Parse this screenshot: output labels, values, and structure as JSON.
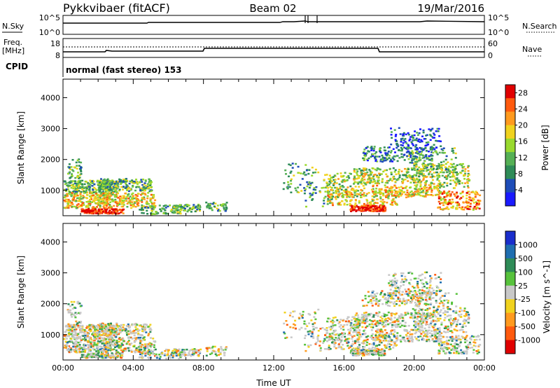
{
  "header": {
    "station": "Pykkvibaer (fitACF)",
    "beam": "Beam 02",
    "date": "19/Mar/2016"
  },
  "panels": {
    "nsky_label": "N.Sky",
    "nsky_top": "10^5",
    "nsky_bottom": "10^0",
    "nsearch_label": "N.Search",
    "nsearch_top": "10^5",
    "nsearch_bottom": "10^0",
    "freq_label": "Freq.",
    "freq_unit": "[MHz]",
    "freq_top": "18",
    "freq_bottom": "8",
    "nave_label": "Nave",
    "nave_top": "60",
    "nave_bottom": "0",
    "cpid_label": "CPID",
    "cpid_text": "normal (fast stereo) 153"
  },
  "colors": {
    "power": [
      "#1a1aff",
      "#1e4db8",
      "#2e8b57",
      "#55b055",
      "#99d92e",
      "#f0d21e",
      "#ff9a1e",
      "#ff5a0e",
      "#e00000"
    ],
    "velocity": [
      "#1a2ecc",
      "#1f6eb0",
      "#2e8b57",
      "#57c23c",
      "#c8c8c8",
      "#f0d21e",
      "#ff9a1e",
      "#ff5a0e",
      "#e00000"
    ]
  },
  "chart_data": [
    {
      "type": "heatmap",
      "title": "Power",
      "ylabel": "Slant Range [km]",
      "xlabel": "",
      "ylim": [
        180,
        4600
      ],
      "yticks": [
        "1000",
        "2000",
        "3000",
        "4000"
      ],
      "colorbar_label": "Power [dB]",
      "colorbar_ticks": [
        "4",
        "8",
        "12",
        "16",
        "20",
        "24",
        "28"
      ],
      "colorbar_range": [
        0,
        30
      ]
    },
    {
      "type": "heatmap",
      "title": "Velocity",
      "ylabel": "Slant Range [km]",
      "xlabel": "Time UT",
      "ylim": [
        180,
        4600
      ],
      "yticks": [
        "1000",
        "2000",
        "3000",
        "4000"
      ],
      "xticks": [
        "00:00",
        "04:00",
        "08:00",
        "12:00",
        "16:00",
        "20:00",
        "00:00"
      ],
      "colorbar_label": "Velocity [m s^-1]",
      "colorbar_ticks": [
        "1000",
        "500",
        "100",
        "25",
        "-25",
        "-100",
        "-500",
        "-1000"
      ]
    }
  ]
}
